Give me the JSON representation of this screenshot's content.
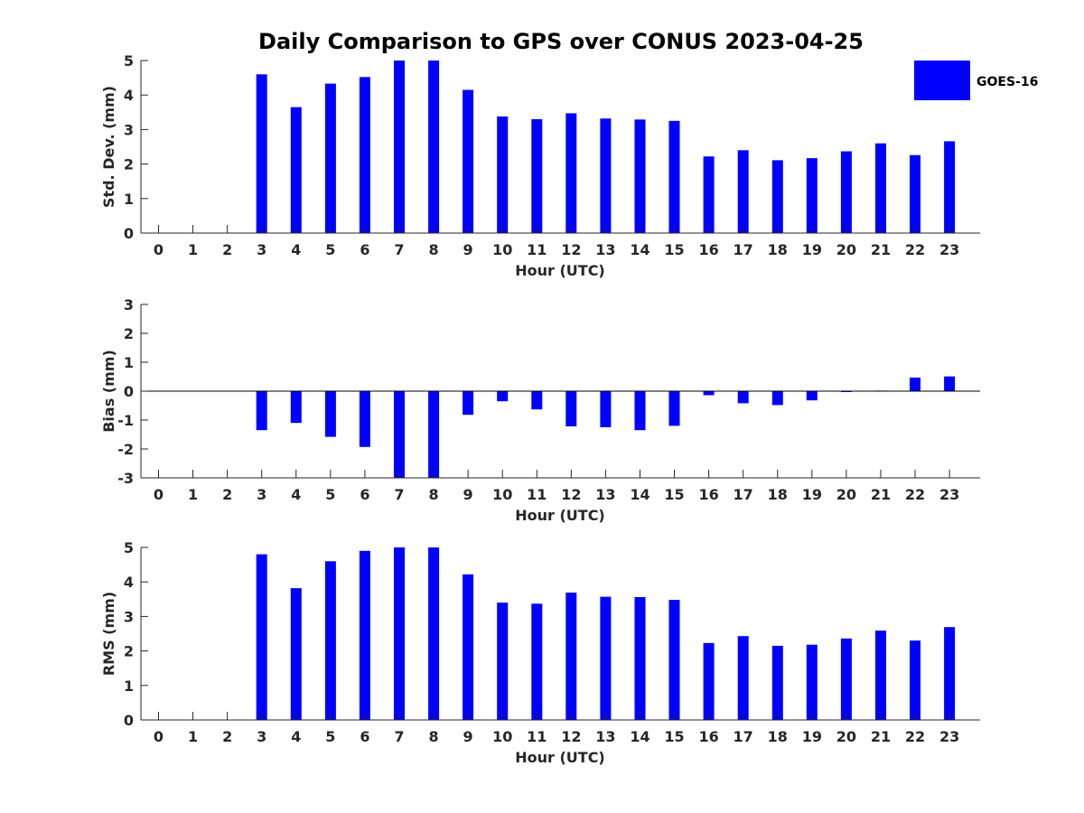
{
  "figure": {
    "title": "Daily Comparison to GPS over CONUS 2023-04-25"
  },
  "legend": {
    "label": "GOES-16",
    "color": "#0000ff"
  },
  "chart_data": [
    {
      "type": "bar",
      "title": "",
      "xlabel": "Hour (UTC)",
      "ylabel": "Std. Dev. (mm)",
      "ylim": [
        0,
        5
      ],
      "yticks": [
        0,
        1,
        2,
        3,
        4,
        5
      ],
      "categories": [
        "0",
        "1",
        "2",
        "3",
        "4",
        "5",
        "6",
        "7",
        "8",
        "9",
        "10",
        "11",
        "12",
        "13",
        "14",
        "15",
        "16",
        "17",
        "18",
        "19",
        "20",
        "21",
        "22",
        "23"
      ],
      "series": [
        {
          "name": "GOES-16",
          "color": "#0000ff",
          "values": [
            null,
            null,
            null,
            4.6,
            3.65,
            4.33,
            4.52,
            5.0,
            5.0,
            4.15,
            3.38,
            3.3,
            3.47,
            3.32,
            3.29,
            3.25,
            2.22,
            2.4,
            2.11,
            2.17,
            2.37,
            2.6,
            2.26,
            2.66
          ]
        }
      ]
    },
    {
      "type": "bar",
      "title": "",
      "xlabel": "Hour (UTC)",
      "ylabel": "Bias (mm)",
      "ylim": [
        -3,
        3
      ],
      "yticks": [
        -3,
        -2,
        -1,
        0,
        1,
        2,
        3
      ],
      "categories": [
        "0",
        "1",
        "2",
        "3",
        "4",
        "5",
        "6",
        "7",
        "8",
        "9",
        "10",
        "11",
        "12",
        "13",
        "14",
        "15",
        "16",
        "17",
        "18",
        "19",
        "20",
        "21",
        "22",
        "23"
      ],
      "series": [
        {
          "name": "GOES-16",
          "color": "#0000ff",
          "values": [
            null,
            null,
            null,
            -1.35,
            -1.1,
            -1.58,
            -1.93,
            -3.0,
            -3.0,
            -0.82,
            -0.35,
            -0.63,
            -1.22,
            -1.25,
            -1.35,
            -1.2,
            -0.14,
            -0.42,
            -0.48,
            -0.32,
            -0.02,
            0.02,
            0.47,
            0.51
          ]
        }
      ]
    },
    {
      "type": "bar",
      "title": "",
      "xlabel": "Hour (UTC)",
      "ylabel": "RMS (mm)",
      "ylim": [
        0,
        5
      ],
      "yticks": [
        0,
        1,
        2,
        3,
        4,
        5
      ],
      "categories": [
        "0",
        "1",
        "2",
        "3",
        "4",
        "5",
        "6",
        "7",
        "8",
        "9",
        "10",
        "11",
        "12",
        "13",
        "14",
        "15",
        "16",
        "17",
        "18",
        "19",
        "20",
        "21",
        "22",
        "23"
      ],
      "series": [
        {
          "name": "GOES-16",
          "color": "#0000ff",
          "values": [
            null,
            null,
            null,
            4.8,
            3.82,
            4.6,
            4.9,
            5.0,
            5.0,
            4.22,
            3.4,
            3.37,
            3.69,
            3.57,
            3.56,
            3.48,
            2.23,
            2.43,
            2.15,
            2.18,
            2.36,
            2.59,
            2.3,
            2.69
          ]
        }
      ]
    }
  ]
}
